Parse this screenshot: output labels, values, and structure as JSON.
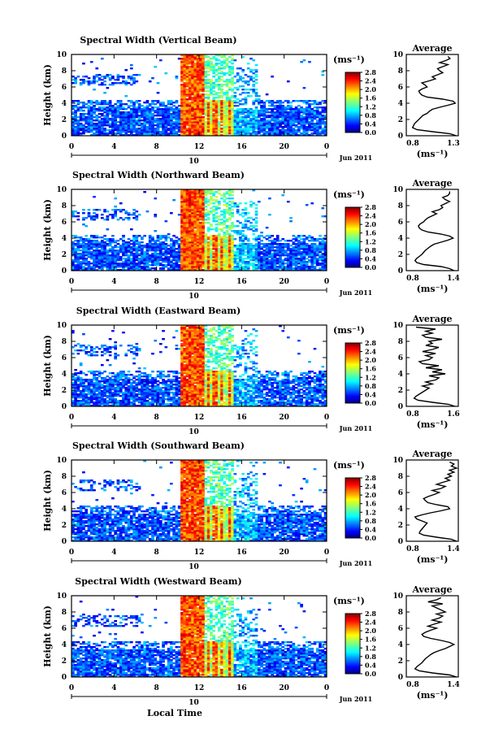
{
  "chart_data": [
    {
      "type": "heatmap",
      "title": "Spectral Width (Vertical Beam)",
      "ylabel": "Height (km)",
      "x_ticks": [
        "0",
        "4",
        "8",
        "12",
        "16",
        "20",
        "0"
      ],
      "y_ticks": [
        "0",
        "2",
        "4",
        "6",
        "8",
        "10"
      ],
      "xlim": [
        0,
        24
      ],
      "ylim": [
        0,
        10
      ],
      "date_number": "10",
      "date_label": "Jun 2011",
      "colorbar": {
        "unit": "(ms⁻¹)",
        "ticks": [
          "0.0",
          "0.4",
          "0.8",
          "1.2",
          "1.6",
          "2.0",
          "2.4",
          "2.8"
        ],
        "range": [
          0,
          2.8
        ]
      },
      "average": {
        "title": "Average",
        "xlabel": "(ms⁻¹)",
        "x_ticks": [
          "0.8",
          "1.3"
        ],
        "xlim": [
          0.8,
          1.3
        ],
        "y_ticks": [
          "0",
          "2",
          "4",
          "6",
          "8",
          "10"
        ],
        "profile": {
          "height": [
            0,
            0.25,
            0.5,
            0.75,
            1,
            1.25,
            1.5,
            1.75,
            2,
            2.25,
            2.5,
            2.75,
            3,
            3.25,
            3.5,
            3.75,
            4,
            4.25,
            4.5,
            4.75,
            5,
            5.25,
            5.5,
            5.75,
            6,
            6.25,
            6.5,
            6.75,
            7,
            7.25,
            7.5,
            7.75,
            8,
            8.25,
            8.5,
            8.75,
            9,
            9.25,
            9.5,
            9.75
          ],
          "value": [
            1.28,
            1.22,
            1.05,
            0.9,
            0.86,
            0.87,
            0.88,
            0.9,
            0.92,
            0.94,
            0.96,
            1.0,
            1.02,
            1.05,
            1.12,
            1.2,
            1.27,
            1.25,
            1.15,
            1.0,
            0.95,
            0.93,
            0.92,
            0.95,
            1.0,
            0.98,
            0.95,
            1.02,
            1.08,
            1.05,
            1.1,
            1.15,
            1.12,
            1.1,
            1.15,
            1.2,
            1.12,
            1.18,
            1.22,
            1.2
          ]
        }
      }
    },
    {
      "type": "heatmap",
      "title": "Spectral Width (Northward Beam)",
      "ylabel": "Height (km)",
      "x_ticks": [
        "0",
        "4",
        "8",
        "12",
        "16",
        "20",
        "0"
      ],
      "y_ticks": [
        "0",
        "2",
        "4",
        "6",
        "8",
        "10"
      ],
      "xlim": [
        0,
        24
      ],
      "ylim": [
        0,
        10
      ],
      "date_number": "10",
      "date_label": "Jun 2011",
      "colorbar": {
        "unit": "(ms⁻¹)",
        "ticks": [
          "0.0",
          "0.4",
          "0.8",
          "1.2",
          "1.6",
          "2.0",
          "2.4",
          "2.8"
        ],
        "range": [
          0,
          2.8
        ]
      },
      "average": {
        "title": "Average",
        "xlabel": "(ms⁻¹)",
        "x_ticks": [
          "0.8",
          "1.4"
        ],
        "xlim": [
          0.8,
          1.4
        ],
        "y_ticks": [
          "0",
          "2",
          "4",
          "6",
          "8",
          "10"
        ],
        "profile": {
          "height": [
            0,
            0.25,
            0.5,
            0.75,
            1,
            1.25,
            1.5,
            1.75,
            2,
            2.25,
            2.5,
            2.75,
            3,
            3.25,
            3.5,
            3.75,
            4,
            4.25,
            4.5,
            4.75,
            5,
            5.25,
            5.5,
            5.75,
            6,
            6.25,
            6.5,
            6.75,
            7,
            7.25,
            7.5,
            7.75,
            8,
            8.25,
            8.5,
            8.75,
            9,
            9.25,
            9.5,
            9.75
          ],
          "value": [
            1.35,
            1.3,
            1.2,
            1.0,
            0.92,
            0.9,
            0.92,
            0.95,
            0.98,
            1.0,
            1.02,
            1.05,
            1.08,
            1.12,
            1.2,
            1.28,
            1.34,
            1.3,
            1.2,
            1.05,
            0.98,
            0.95,
            0.94,
            0.96,
            1.0,
            1.02,
            1.05,
            1.1,
            1.15,
            1.1,
            1.18,
            1.22,
            1.2,
            1.25,
            1.3,
            1.25,
            1.22,
            1.28,
            1.3,
            1.3
          ]
        }
      }
    },
    {
      "type": "heatmap",
      "title": "Spectral Width (Eastward Beam)",
      "ylabel": "Height (km)",
      "x_ticks": [
        "0",
        "4",
        "8",
        "12",
        "16",
        "20",
        "0"
      ],
      "y_ticks": [
        "0",
        "2",
        "4",
        "6",
        "8",
        "10"
      ],
      "xlim": [
        0,
        24
      ],
      "ylim": [
        0,
        10
      ],
      "date_number": "10",
      "date_label": "Jun 2011",
      "colorbar": {
        "unit": "(ms⁻¹)",
        "ticks": [
          "0.0",
          "0.4",
          "0.8",
          "1.2",
          "1.6",
          "2.0",
          "2.4",
          "2.8"
        ],
        "range": [
          0,
          2.8
        ]
      },
      "average": {
        "title": "Average",
        "xlabel": "(ms⁻¹)",
        "x_ticks": [
          "0.8",
          "1.6"
        ],
        "xlim": [
          0.8,
          1.6
        ],
        "y_ticks": [
          "0",
          "2",
          "4",
          "6",
          "8",
          "10"
        ],
        "profile": {
          "height": [
            0,
            0.25,
            0.5,
            0.75,
            1,
            1.25,
            1.5,
            1.75,
            2,
            2.25,
            2.5,
            2.75,
            3,
            3.25,
            3.5,
            3.75,
            4,
            4.25,
            4.5,
            4.75,
            5,
            5.25,
            5.5,
            5.75,
            6,
            6.25,
            6.5,
            6.75,
            7,
            7.25,
            7.5,
            7.75,
            8,
            8.25,
            8.5,
            8.75,
            9,
            9.25,
            9.5,
            9.75
          ],
          "value": [
            1.55,
            1.45,
            1.2,
            0.98,
            0.92,
            0.95,
            1.0,
            1.05,
            1.1,
            1.15,
            1.05,
            1.2,
            1.1,
            1.25,
            1.3,
            1.15,
            1.4,
            1.2,
            1.35,
            1.1,
            1.3,
            1.05,
            1.0,
            1.15,
            1.2,
            1.1,
            1.25,
            1.05,
            1.2,
            1.3,
            1.1,
            1.2,
            1.15,
            1.35,
            1.1,
            1.05,
            1.2,
            1.1,
            1.25,
            0.95
          ]
        }
      }
    },
    {
      "type": "heatmap",
      "title": "Spectral Width (Southward Beam)",
      "ylabel": "Height (km)",
      "x_ticks": [
        "0",
        "4",
        "8",
        "12",
        "16",
        "20",
        "0"
      ],
      "y_ticks": [
        "0",
        "2",
        "4",
        "6",
        "8",
        "10"
      ],
      "xlim": [
        0,
        24
      ],
      "ylim": [
        0,
        10
      ],
      "date_number": "10",
      "date_label": "Jun 2011",
      "colorbar": {
        "unit": "(ms⁻¹)",
        "ticks": [
          "0.0",
          "0.4",
          "0.8",
          "1.2",
          "1.6",
          "2.0",
          "2.4",
          "2.8"
        ],
        "range": [
          0,
          2.8
        ]
      },
      "average": {
        "title": "Average",
        "xlabel": "(ms⁻¹)",
        "x_ticks": [
          "0.8",
          "1.4"
        ],
        "xlim": [
          0.8,
          1.4
        ],
        "y_ticks": [
          "0",
          "2",
          "4",
          "6",
          "8",
          "10"
        ],
        "profile": {
          "height": [
            0,
            0.25,
            0.5,
            0.75,
            1,
            1.25,
            1.5,
            1.75,
            2,
            2.25,
            2.5,
            2.75,
            3,
            3.25,
            3.5,
            3.75,
            4,
            4.25,
            4.5,
            4.75,
            5,
            5.25,
            5.5,
            5.75,
            6,
            6.25,
            6.5,
            6.75,
            7,
            7.25,
            7.5,
            7.75,
            8,
            8.25,
            8.5,
            8.75,
            9,
            9.25,
            9.5,
            9.75
          ],
          "value": [
            1.38,
            1.32,
            1.15,
            1.0,
            0.95,
            0.96,
            0.98,
            1.0,
            1.02,
            1.04,
            0.98,
            0.92,
            0.9,
            0.98,
            1.08,
            1.2,
            1.3,
            1.28,
            1.15,
            1.05,
            1.02,
            1.0,
            1.05,
            1.12,
            1.18,
            1.1,
            1.2,
            1.25,
            1.15,
            1.22,
            1.3,
            1.25,
            1.32,
            1.28,
            1.35,
            1.3,
            1.38,
            1.32,
            1.35,
            1.3
          ]
        }
      }
    },
    {
      "type": "heatmap",
      "title": "Spectral Width (Westward Beam)",
      "ylabel": "Height (km)",
      "xlabel": "Local Time",
      "x_ticks": [
        "0",
        "4",
        "8",
        "12",
        "16",
        "20",
        "0"
      ],
      "y_ticks": [
        "0",
        "2",
        "4",
        "6",
        "8",
        "10"
      ],
      "xlim": [
        0,
        24
      ],
      "ylim": [
        0,
        10
      ],
      "date_number": "10",
      "date_label": "Jun 2011",
      "colorbar": {
        "unit": "(ms⁻¹)",
        "ticks": [
          "0.0",
          "0.4",
          "0.8",
          "1.2",
          "1.6",
          "2.0",
          "2.4",
          "2.8"
        ],
        "range": [
          0,
          2.8
        ]
      },
      "average": {
        "title": "Average",
        "xlabel": "(ms⁻¹)",
        "x_ticks": [
          "0.8",
          "1.4"
        ],
        "xlim": [
          0.8,
          1.4
        ],
        "y_ticks": [
          "0",
          "2",
          "4",
          "6",
          "8",
          "10"
        ],
        "profile": {
          "height": [
            0,
            0.25,
            0.5,
            0.75,
            1,
            1.25,
            1.5,
            1.75,
            2,
            2.25,
            2.5,
            2.75,
            3,
            3.25,
            3.5,
            3.75,
            4,
            4.25,
            4.5,
            4.75,
            5,
            5.25,
            5.5,
            5.75,
            6,
            6.25,
            6.5,
            6.75,
            7,
            7.25,
            7.5,
            7.75,
            8,
            8.25,
            8.5,
            8.75,
            9,
            9.25,
            9.5,
            9.75
          ],
          "value": [
            1.38,
            1.3,
            1.1,
            0.95,
            0.9,
            0.92,
            0.95,
            0.98,
            1.0,
            1.02,
            1.05,
            1.08,
            1.12,
            1.18,
            1.25,
            1.3,
            1.35,
            1.3,
            1.2,
            1.08,
            1.0,
            0.98,
            1.02,
            1.08,
            1.15,
            1.05,
            1.12,
            1.2,
            1.1,
            1.18,
            1.22,
            1.15,
            1.25,
            1.2,
            1.15,
            1.1,
            1.22,
            1.05,
            1.15,
            1.2
          ]
        }
      }
    }
  ]
}
